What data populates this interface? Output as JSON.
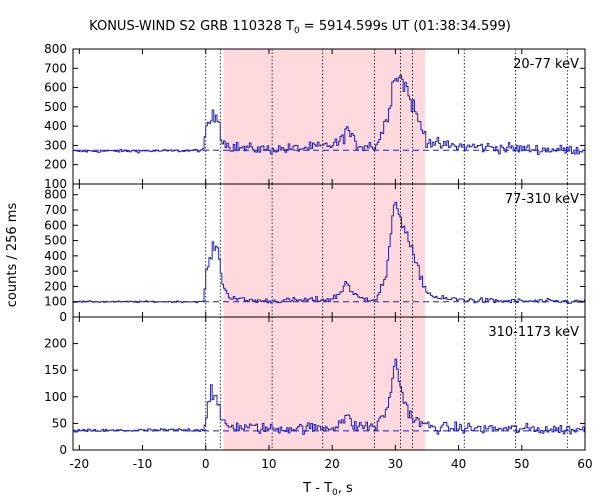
{
  "title_prefix": "KONUS-WIND S2 GRB 110328 T",
  "title_sub": "0",
  "title_suffix": " = 5914.599s UT (01:38:34.599)",
  "ylabel": "counts / 256 ms",
  "xlabel_prefix": "T - T",
  "xlabel_sub": "0",
  "xlabel_suffix": ", s",
  "chart_data": {
    "type": "line",
    "x_range": [
      -21,
      60
    ],
    "x_ticks": [
      -20,
      -10,
      0,
      10,
      20,
      30,
      40,
      50,
      60
    ],
    "bin_width_s": 0.256,
    "shaded_interval": [
      2.8,
      34.7
    ],
    "shade_color": "#ffd9de",
    "series_color": "#2121b4",
    "vertical_markers": [
      0,
      2.3,
      10.5,
      18.5,
      26.7,
      30.8,
      32.7,
      40.9,
      49.0,
      57.2
    ],
    "panels": [
      {
        "label": "20-77 keV",
        "ylim": [
          100,
          800
        ],
        "yticks": [
          100,
          200,
          300,
          400,
          500,
          600,
          700,
          800
        ],
        "background": 275,
        "noise": 15,
        "profile": [
          [
            -21,
            270
          ],
          [
            -5,
            272
          ],
          [
            -0.3,
            275
          ],
          [
            0,
            380
          ],
          [
            0.4,
            420
          ],
          [
            1.2,
            440
          ],
          [
            2.0,
            460
          ],
          [
            2.6,
            330
          ],
          [
            3.5,
            300
          ],
          [
            6,
            285
          ],
          [
            10,
            280
          ],
          [
            15,
            285
          ],
          [
            19,
            295
          ],
          [
            21.5,
            320
          ],
          [
            22.3,
            395
          ],
          [
            23,
            340
          ],
          [
            24,
            300
          ],
          [
            27,
            300
          ],
          [
            28.5,
            420
          ],
          [
            29.3,
            560
          ],
          [
            30,
            680
          ],
          [
            30.8,
            650
          ],
          [
            31.6,
            610
          ],
          [
            32.4,
            540
          ],
          [
            33.5,
            440
          ],
          [
            35,
            330
          ],
          [
            37,
            300
          ],
          [
            45,
            290
          ],
          [
            52,
            280
          ],
          [
            60,
            275
          ]
        ]
      },
      {
        "label": "77-310 keV",
        "ylim": [
          0,
          870
        ],
        "yticks": [
          0,
          100,
          200,
          300,
          400,
          500,
          600,
          700,
          800
        ],
        "background": 100,
        "noise": 10,
        "profile": [
          [
            -21,
            100
          ],
          [
            -0.3,
            100
          ],
          [
            0,
            280
          ],
          [
            0.6,
            360
          ],
          [
            1.3,
            470
          ],
          [
            2.1,
            420
          ],
          [
            2.7,
            210
          ],
          [
            3.5,
            140
          ],
          [
            6,
            110
          ],
          [
            10,
            105
          ],
          [
            20,
            115
          ],
          [
            21.6,
            170
          ],
          [
            22.3,
            250
          ],
          [
            23,
            160
          ],
          [
            24.5,
            120
          ],
          [
            27,
            120
          ],
          [
            28.5,
            260
          ],
          [
            29.4,
            560
          ],
          [
            30,
            790
          ],
          [
            30.7,
            660
          ],
          [
            31.5,
            580
          ],
          [
            32.3,
            470
          ],
          [
            33.5,
            320
          ],
          [
            35,
            160
          ],
          [
            37,
            120
          ],
          [
            45,
            105
          ],
          [
            60,
            100
          ]
        ]
      },
      {
        "label": "310-1173 keV",
        "ylim": [
          0,
          250
        ],
        "yticks": [
          0,
          50,
          100,
          150,
          200
        ],
        "background": 36,
        "noise": 6,
        "profile": [
          [
            -21,
            36
          ],
          [
            -0.3,
            38
          ],
          [
            0,
            60
          ],
          [
            0.8,
            115
          ],
          [
            1.6,
            95
          ],
          [
            2.4,
            60
          ],
          [
            3.5,
            45
          ],
          [
            10,
            40
          ],
          [
            20,
            42
          ],
          [
            22.3,
            62
          ],
          [
            23.5,
            45
          ],
          [
            27,
            45
          ],
          [
            28.5,
            70
          ],
          [
            29.5,
            125
          ],
          [
            30.1,
            170
          ],
          [
            30.8,
            120
          ],
          [
            31.6,
            85
          ],
          [
            33,
            55
          ],
          [
            36,
            42
          ],
          [
            45,
            40
          ],
          [
            60,
            38
          ]
        ]
      }
    ]
  }
}
